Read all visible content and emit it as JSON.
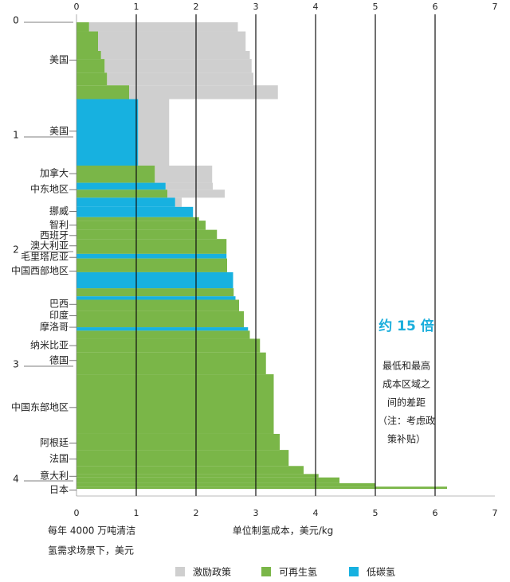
{
  "chart_data": {
    "type": "supply-curve",
    "x_label": "单位制氢成本，美元/kg",
    "y_label_lines": [
      "每年 4000 万吨清洁",
      "氢需求场景下，美元"
    ],
    "xlim": [
      0,
      7
    ],
    "xticks": [
      0,
      1,
      2,
      3,
      4,
      5,
      6,
      7
    ],
    "ylim": [
      0,
      4.2
    ],
    "yticks": [
      0,
      1,
      2,
      3,
      4
    ],
    "grid": true,
    "series": [
      {
        "name": "激励政策",
        "color": "#cfcfcf"
      },
      {
        "name": "可再生氢",
        "color": "#7ab648"
      },
      {
        "name": "低碳氢",
        "color": "#17b1e0"
      }
    ],
    "segments": [
      {
        "series": 1,
        "volume": 0.08,
        "value": 0.21,
        "policy_value": 2.7
      },
      {
        "series": 1,
        "volume": 0.17,
        "value": 0.36,
        "policy_value": 2.83
      },
      {
        "series": 1,
        "volume": 0.07,
        "value": 0.41,
        "policy_value": 2.9
      },
      {
        "series": 1,
        "volume": 0.12,
        "value": 0.47,
        "policy_value": 2.93
      },
      {
        "series": 1,
        "volume": 0.11,
        "value": 0.51,
        "policy_value": 2.96
      },
      {
        "series": 1,
        "volume": 0.12,
        "value": 0.88,
        "policy_value": 3.37
      },
      {
        "series": 2,
        "volume": 0.58,
        "value": 1.03,
        "policy_value": 1.55
      },
      {
        "series": 1,
        "volume": 0.15,
        "value": 1.31,
        "policy_value": 2.27
      },
      {
        "series": 2,
        "volume": 0.06,
        "value": 1.49,
        "policy_value": 2.28
      },
      {
        "series": 1,
        "volume": 0.07,
        "value": 1.52,
        "policy_value": 2.48
      },
      {
        "series": 2,
        "volume": 0.08,
        "value": 1.65,
        "policy_value": 1.76
      },
      {
        "series": 2,
        "volume": 0.09,
        "value": 1.95
      },
      {
        "series": 1,
        "volume": 0.03,
        "value": 2.05
      },
      {
        "series": 1,
        "volume": 0.08,
        "value": 2.16
      },
      {
        "series": 1,
        "volume": 0.08,
        "value": 2.35
      },
      {
        "series": 1,
        "volume": 0.13,
        "value": 2.51
      },
      {
        "series": 2,
        "volume": 0.04,
        "value": 2.51
      },
      {
        "series": 1,
        "volume": 0.12,
        "value": 2.52
      },
      {
        "series": 2,
        "volume": 0.14,
        "value": 2.62
      },
      {
        "series": 1,
        "volume": 0.07,
        "value": 2.63
      },
      {
        "series": 2,
        "volume": 0.03,
        "value": 2.66
      },
      {
        "series": 1,
        "volume": 0.1,
        "value": 2.72
      },
      {
        "series": 1,
        "volume": 0.14,
        "value": 2.8
      },
      {
        "series": 2,
        "volume": 0.03,
        "value": 2.87
      },
      {
        "series": 1,
        "volume": 0.07,
        "value": 2.9
      },
      {
        "series": 1,
        "volume": 0.12,
        "value": 3.07
      },
      {
        "series": 1,
        "volume": 0.19,
        "value": 3.17
      },
      {
        "series": 1,
        "volume": 0.52,
        "value": 3.3
      },
      {
        "series": 1,
        "volume": 0.14,
        "value": 3.4
      },
      {
        "series": 1,
        "volume": 0.14,
        "value": 3.55
      },
      {
        "series": 1,
        "volume": 0.07,
        "value": 3.8
      },
      {
        "series": 1,
        "volume": 0.03,
        "value": 4.05
      },
      {
        "series": 1,
        "volume": 0.05,
        "value": 4.4
      },
      {
        "series": 1,
        "volume": 0.03,
        "value": 5.0
      },
      {
        "series": 1,
        "volume": 0.02,
        "value": 6.2
      }
    ],
    "region_labels": [
      {
        "label": "美国",
        "y": 0.33
      },
      {
        "label": "美国",
        "y": 0.95
      },
      {
        "label": "加拿大",
        "y": 1.32
      },
      {
        "label": "中东地区",
        "y": 1.46
      },
      {
        "label": "挪威",
        "y": 1.65
      },
      {
        "label": "智利",
        "y": 1.77
      },
      {
        "label": "西班牙",
        "y": 1.86
      },
      {
        "label": "澳大利亚",
        "y": 1.95
      },
      {
        "label": "毛里塔尼亚",
        "y": 2.05
      },
      {
        "label": "中国西部地区",
        "y": 2.17
      },
      {
        "label": "巴西",
        "y": 2.46
      },
      {
        "label": "印度",
        "y": 2.56
      },
      {
        "label": "摩洛哥",
        "y": 2.66
      },
      {
        "label": "纳米比亚",
        "y": 2.82
      },
      {
        "label": "德国",
        "y": 2.95
      },
      {
        "label": "中国东部地区",
        "y": 3.36
      },
      {
        "label": "阿根廷",
        "y": 3.67
      },
      {
        "label": "法国",
        "y": 3.81
      },
      {
        "label": "意大利",
        "y": 3.96
      },
      {
        "label": "日本",
        "y": 4.08
      }
    ],
    "annotation_title": "约 15 倍",
    "annotation_lines": [
      "最低和最高",
      "成本区域之",
      "间的差距",
      "（注：考虑政",
      "策补贴）"
    ]
  }
}
